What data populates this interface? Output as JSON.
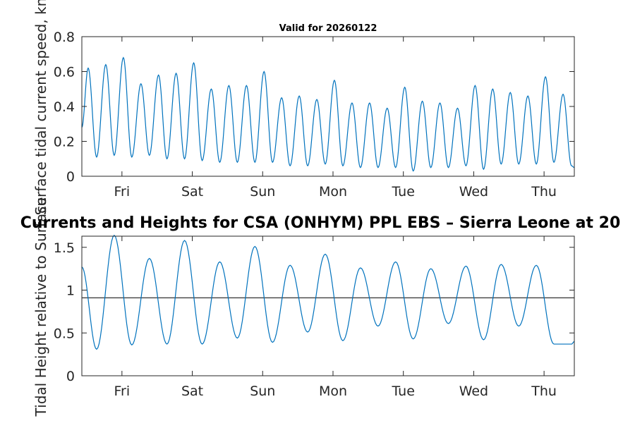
{
  "figure_title": "Currents and Heights for CSA (ONHYM) PPL EBS  – Sierra Leone at 20",
  "chart_data": [
    {
      "type": "line",
      "title": "Valid for 20260122",
      "xlabel": "",
      "ylabel": "Surface tidal current speed, kn",
      "x_ticks": [
        "Fri",
        "Sat",
        "Sun",
        "Mon",
        "Tue",
        "Wed",
        "Thu"
      ],
      "x_tick_days": [
        0.5,
        1.5,
        2.5,
        3.5,
        4.5,
        5.5,
        6.5
      ],
      "xlim": [
        -0.07,
        6.93
      ],
      "ylim": [
        0,
        0.8
      ],
      "y_ticks": [
        "0",
        "0.2",
        "0.4",
        "0.6",
        "0.8"
      ],
      "y_tick_values": [
        0,
        0.2,
        0.4,
        0.6,
        0.8
      ],
      "line_color": "#0072bd",
      "series": [
        {
          "x_days": [
            -0.07,
            0.02,
            0.14,
            0.27,
            0.39,
            0.52,
            0.64,
            0.77,
            0.89,
            1.02,
            1.14,
            1.27,
            1.39,
            1.52,
            1.64,
            1.77,
            1.89,
            2.02,
            2.14,
            2.27,
            2.39,
            2.52,
            2.64,
            2.77,
            2.89,
            3.02,
            3.14,
            3.27,
            3.39,
            3.52,
            3.64,
            3.77,
            3.89,
            4.02,
            4.14,
            4.27,
            4.39,
            4.52,
            4.64,
            4.77,
            4.89,
            5.02,
            5.14,
            5.27,
            5.39,
            5.52,
            5.64,
            5.77,
            5.89,
            6.02,
            6.14,
            6.27,
            6.39,
            6.52,
            6.64,
            6.77,
            6.89,
            6.93
          ],
          "values": [
            0.28,
            0.62,
            0.11,
            0.64,
            0.12,
            0.68,
            0.11,
            0.53,
            0.12,
            0.58,
            0.1,
            0.59,
            0.1,
            0.65,
            0.09,
            0.5,
            0.08,
            0.52,
            0.08,
            0.52,
            0.08,
            0.6,
            0.08,
            0.45,
            0.06,
            0.46,
            0.06,
            0.44,
            0.07,
            0.55,
            0.06,
            0.42,
            0.05,
            0.42,
            0.05,
            0.39,
            0.05,
            0.51,
            0.03,
            0.43,
            0.05,
            0.42,
            0.05,
            0.39,
            0.06,
            0.52,
            0.04,
            0.5,
            0.07,
            0.48,
            0.07,
            0.46,
            0.07,
            0.57,
            0.08,
            0.47,
            0.06,
            0.05
          ]
        }
      ]
    },
    {
      "type": "line",
      "title": "",
      "xlabel": "",
      "ylabel": "Tidal Height relative to Surface",
      "x_ticks": [
        "Fri",
        "Sat",
        "Sun",
        "Mon",
        "Tue",
        "Wed",
        "Thu"
      ],
      "x_tick_days": [
        0.5,
        1.5,
        2.5,
        3.5,
        4.5,
        5.5,
        6.5
      ],
      "xlim": [
        -0.07,
        6.93
      ],
      "ylim": [
        0,
        1.63
      ],
      "y_ticks": [
        "0",
        "0.5",
        "1",
        "1.5"
      ],
      "y_tick_values": [
        0,
        0.5,
        1,
        1.5
      ],
      "line_color": "#0072bd",
      "reference_line": {
        "y": 0.91,
        "color": "#404040"
      },
      "series": [
        {
          "x_days": [
            -0.07,
            0.14,
            0.39,
            0.64,
            0.89,
            1.14,
            1.39,
            1.64,
            1.89,
            2.14,
            2.39,
            2.64,
            2.89,
            3.14,
            3.39,
            3.64,
            3.89,
            4.14,
            4.39,
            4.64,
            4.89,
            5.14,
            5.39,
            5.64,
            5.89,
            6.14,
            6.39,
            6.64,
            6.89,
            6.93
          ],
          "values": [
            1.27,
            0.31,
            1.64,
            0.36,
            1.37,
            0.37,
            1.58,
            0.37,
            1.33,
            0.44,
            1.51,
            0.39,
            1.29,
            0.51,
            1.42,
            0.41,
            1.26,
            0.58,
            1.33,
            0.43,
            1.25,
            0.61,
            1.28,
            0.42,
            1.3,
            0.58,
            1.29,
            0.37,
            0.37,
            0.4
          ]
        }
      ]
    }
  ]
}
